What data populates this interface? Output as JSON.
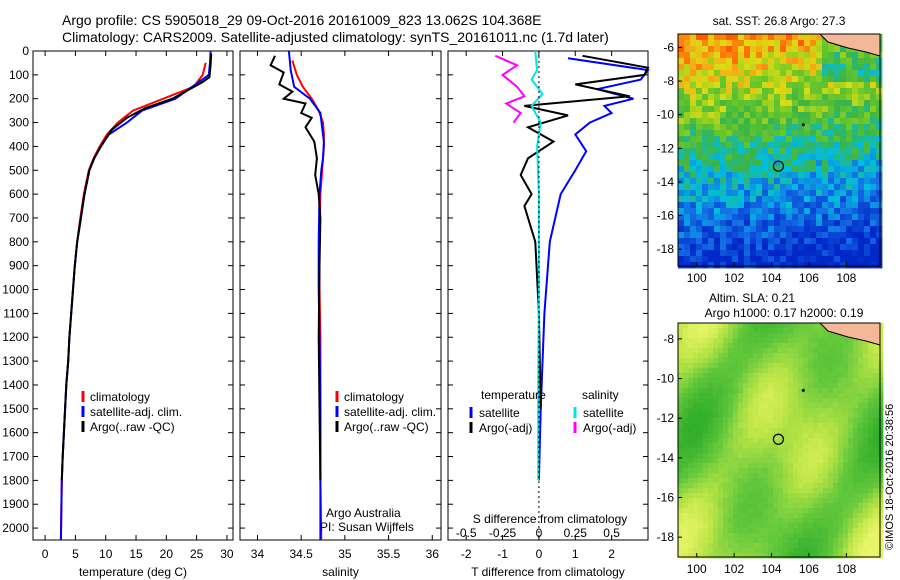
{
  "header": {
    "line1": "Argo profile: CS 5905018_29 09-Oct-2016 20161009_823 13.062S 104.368E",
    "line2": "Climatology: CARS2009. Satellite-adjusted climatology: synTS_20161011.nc (1.7d later)"
  },
  "footer": {
    "credit": "©IMOS 18-Oct-2016 20:38:56",
    "org": "Argo Australia",
    "pi": "PI: Susan Wijffels"
  },
  "colors": {
    "climatology": "#ff0000",
    "satellite": "#0000ff",
    "argo": "#000000",
    "salinity_satellite": "#00e5e5",
    "salinity_argo": "#ff00ff"
  },
  "chart_data": [
    {
      "type": "line",
      "xlabel": "temperature (deg C)",
      "xlim": [
        -2,
        31
      ],
      "ylim": [
        2050,
        0
      ],
      "xticks": [
        0,
        5,
        10,
        15,
        20,
        25,
        30
      ],
      "yticks": [
        0,
        100,
        200,
        300,
        400,
        500,
        600,
        700,
        800,
        900,
        1000,
        1100,
        1200,
        1300,
        1400,
        1500,
        1600,
        1700,
        1800,
        1900,
        2000
      ],
      "legend": [
        "climatology",
        "satellite-adj. clim.",
        "Argo(..raw -QC)"
      ],
      "series": [
        {
          "name": "climatology",
          "color": "#ff0000",
          "x": [
            26.5,
            26.0,
            24.5,
            19.5,
            14.5,
            12.0,
            10.2,
            9.0,
            8.0,
            7.2,
            6.4,
            5.8,
            5.3,
            4.9,
            4.6,
            4.3,
            4.0,
            3.8,
            3.5,
            3.3,
            3.1,
            2.9,
            2.75,
            2.6
          ],
          "y": [
            50,
            100,
            150,
            200,
            250,
            300,
            350,
            400,
            450,
            500,
            600,
            700,
            800,
            900,
            1000,
            1100,
            1200,
            1300,
            1400,
            1500,
            1600,
            1700,
            1800,
            2050
          ]
        },
        {
          "name": "satellite-adj. clim.",
          "color": "#0000ff",
          "x": [
            27.3,
            27.2,
            27.0,
            21.5,
            16.0,
            13.5,
            10.5,
            9.2,
            8.1,
            7.3,
            6.5,
            5.9,
            5.3,
            4.9,
            4.6,
            4.3,
            4.0,
            3.8,
            3.5,
            3.3,
            3.1,
            2.9,
            2.75,
            2.6
          ],
          "y": [
            0,
            50,
            100,
            200,
            250,
            300,
            350,
            400,
            450,
            500,
            600,
            700,
            800,
            900,
            1000,
            1100,
            1200,
            1300,
            1400,
            1500,
            1600,
            1700,
            1800,
            2050
          ]
        },
        {
          "name": "Argo(..raw -QC)",
          "color": "#000000",
          "x": [
            27.4,
            27.3,
            27.1,
            26.0,
            21.0,
            16.5,
            13.5,
            11.0,
            9.2,
            8.1,
            7.3,
            6.5,
            5.9,
            5.3,
            4.9,
            4.6,
            4.3,
            4.0,
            3.8,
            3.5,
            3.3,
            3.1,
            2.9,
            2.75
          ],
          "y": [
            10,
            60,
            110,
            130,
            200,
            240,
            280,
            330,
            400,
            450,
            500,
            600,
            700,
            800,
            900,
            1000,
            1100,
            1200,
            1300,
            1400,
            1500,
            1600,
            1700,
            1800
          ]
        }
      ]
    },
    {
      "type": "line",
      "xlabel": "salinity",
      "xlim": [
        33.8,
        36.1
      ],
      "ylim": [
        2050,
        0
      ],
      "xticks": [
        34,
        34.5,
        35,
        35.5,
        36
      ],
      "legend": [
        "climatology",
        "satellite-adj. clim.",
        "Argo(..raw -QC)"
      ],
      "series": [
        {
          "name": "climatology",
          "color": "#ff0000",
          "x": [
            34.4,
            34.45,
            34.52,
            34.62,
            34.7,
            34.75,
            34.76,
            34.76,
            34.74,
            34.72,
            34.71,
            34.71,
            34.72,
            34.72,
            34.72,
            34.73
          ],
          "y": [
            40,
            100,
            150,
            200,
            250,
            300,
            350,
            400,
            500,
            600,
            800,
            1000,
            1200,
            1500,
            1800,
            2050
          ]
        },
        {
          "name": "satellite-adj. clim.",
          "color": "#0000ff",
          "x": [
            34.36,
            34.38,
            34.42,
            34.6,
            34.72,
            34.74,
            34.76,
            34.75,
            34.73,
            34.71,
            34.7,
            34.7,
            34.71,
            34.72,
            34.72,
            34.72
          ],
          "y": [
            0,
            80,
            150,
            200,
            260,
            320,
            380,
            450,
            500,
            600,
            800,
            1000,
            1200,
            1500,
            1800,
            2050
          ]
        },
        {
          "name": "Argo(..raw -QC)",
          "color": "#000000",
          "x": [
            34.2,
            34.15,
            34.3,
            34.25,
            34.4,
            34.3,
            34.55,
            34.5,
            34.62,
            34.55,
            34.65,
            34.68,
            34.66,
            34.7,
            34.72,
            34.71,
            34.7,
            34.71,
            34.72
          ],
          "y": [
            20,
            60,
            90,
            140,
            170,
            200,
            220,
            260,
            280,
            320,
            380,
            450,
            520,
            600,
            700,
            900,
            1200,
            1500,
            1800
          ]
        }
      ]
    },
    {
      "type": "line",
      "xlabel": "T difference from climatology",
      "xlabel_top": "S difference from climatology",
      "xlim": [
        -2.5,
        3.0
      ],
      "xticks": [
        -2,
        -1,
        0,
        1,
        2
      ],
      "xticks_top": [
        -0.5,
        -0.25,
        0,
        0.25,
        0.5
      ],
      "ylim": [
        2050,
        0
      ],
      "legend_left_title": "temperature",
      "legend_right_title": "salinity",
      "legend": [
        "satellite",
        "Argo(-adj)",
        "satellite",
        "Argo(-adj)"
      ],
      "series": [
        {
          "name": "satellite",
          "group": "temperature",
          "color": "#0000ff",
          "x": [
            0.8,
            3.0,
            2.8,
            1.6,
            2.6,
            1.8,
            2.0,
            1.4,
            1.0,
            1.3,
            1.0,
            0.6,
            0.3,
            0.15,
            0.05,
            0.0
          ],
          "y": [
            30,
            80,
            120,
            160,
            200,
            230,
            260,
            300,
            350,
            420,
            500,
            600,
            800,
            1100,
            1500,
            1800
          ]
        },
        {
          "name": "Argo(-adj)",
          "group": "temperature",
          "color": "#000000",
          "x": [
            1.2,
            3.0,
            2.9,
            1.0,
            2.5,
            -0.4,
            0.8,
            -0.3,
            0.4,
            -0.3,
            -0.5,
            -0.2,
            -0.4,
            -0.1,
            0.0,
            0.05
          ],
          "y": [
            20,
            70,
            100,
            140,
            190,
            230,
            270,
            320,
            380,
            450,
            520,
            600,
            650,
            800,
            1100,
            1500
          ]
        },
        {
          "name": "satellite",
          "group": "salinity",
          "color": "#00e5e5",
          "x": [
            -0.1,
            -0.05,
            -0.2,
            0.1,
            -0.2,
            0.05,
            -0.05,
            0.0,
            0.0,
            -0.02,
            -0.02
          ],
          "y": [
            0,
            80,
            120,
            180,
            230,
            300,
            400,
            600,
            1000,
            1400,
            1800
          ]
        },
        {
          "name": "Argo(-adj)",
          "group": "salinity",
          "color": "#ff00ff",
          "x": [
            -1.2,
            -0.6,
            -1.0,
            -0.6,
            -0.4,
            -0.9,
            -0.5,
            -0.7
          ],
          "y": [
            20,
            60,
            100,
            150,
            190,
            220,
            260,
            300
          ]
        }
      ]
    },
    {
      "type": "heatmap",
      "title": "sat. SST: 26.8  Argo: 27.3",
      "xlim": [
        99,
        109.8
      ],
      "ylim": [
        -19,
        -5.2
      ],
      "xticks": [
        100,
        102,
        104,
        106,
        108
      ],
      "yticks": [
        -6,
        -8,
        -10,
        -12,
        -14,
        -16,
        -18
      ],
      "marker": {
        "lon": 104.368,
        "lat": -13.062
      }
    },
    {
      "type": "heatmap",
      "title": "Altim. SLA: 0.21",
      "subtitle": "Argo h1000: 0.17 h2000: 0.19",
      "xlim": [
        99,
        109.8
      ],
      "ylim": [
        -19,
        -7.2
      ],
      "xticks": [
        100,
        102,
        104,
        106,
        108
      ],
      "yticks": [
        -8,
        -10,
        -12,
        -14,
        -16,
        -18
      ],
      "marker": {
        "lon": 104.368,
        "lat": -13.062
      }
    }
  ]
}
